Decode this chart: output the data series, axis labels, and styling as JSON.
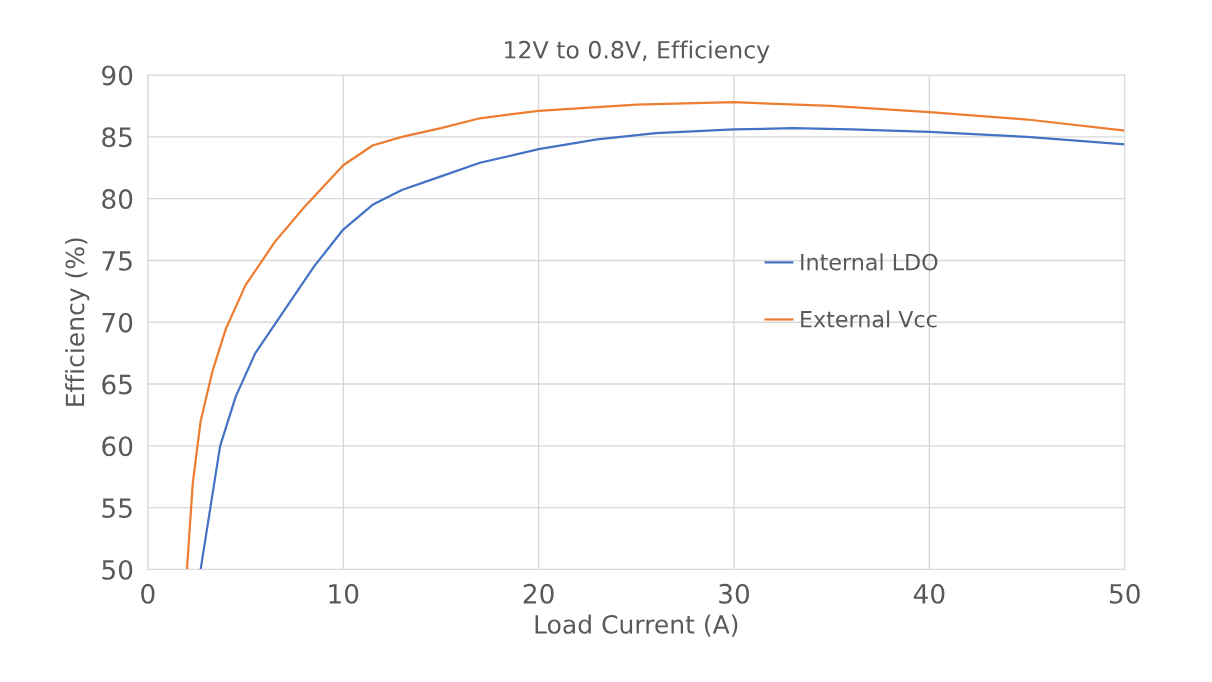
{
  "chart_data": {
    "type": "line",
    "title": "12V to 0.8V, Efficiency",
    "xlabel": "Load Current (A)",
    "ylabel": "Efficiency (%)",
    "xlim": [
      0,
      50
    ],
    "xticks": [
      0,
      10,
      20,
      30,
      40,
      50
    ],
    "ylim": [
      50,
      90
    ],
    "yticks": [
      50,
      55,
      60,
      65,
      70,
      75,
      80,
      85,
      90
    ],
    "grid": true,
    "legend": "right",
    "marker": "none",
    "line_style": "solid",
    "series": [
      {
        "name": "Internal LDO",
        "color": "#4472c4",
        "x": [
          2.7,
          3.2,
          3.7,
          4.5,
          5.5,
          7,
          8.5,
          10,
          11.5,
          13,
          15,
          17,
          20,
          23,
          26,
          30,
          33,
          36,
          40,
          45,
          50
        ],
        "values": [
          50,
          55,
          60,
          64,
          67.5,
          71,
          74.5,
          77.5,
          79.5,
          80.7,
          81.8,
          82.9,
          84.0,
          84.8,
          85.3,
          85.6,
          85.7,
          85.6,
          85.4,
          85.0,
          84.4
        ]
      },
      {
        "name": "External Vcc",
        "color": "#ed7d31",
        "x": [
          2,
          2.3,
          2.7,
          3.3,
          4,
          5,
          6.5,
          8,
          10,
          11.5,
          13,
          15,
          17,
          20,
          25,
          30,
          35,
          40,
          45,
          50
        ],
        "values": [
          50,
          57,
          62,
          66,
          69.5,
          73,
          76.5,
          79.3,
          82.7,
          84.3,
          85,
          85.7,
          86.5,
          87.1,
          87.6,
          87.8,
          87.5,
          87.0,
          86.4,
          85.5
        ]
      }
    ]
  }
}
